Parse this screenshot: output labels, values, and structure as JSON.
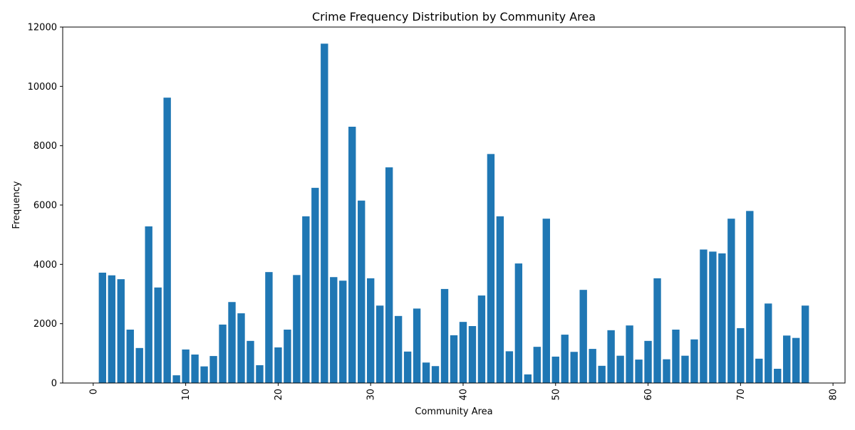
{
  "chart_data": {
    "type": "bar",
    "title": "Crime Frequency Distribution by Community Area",
    "xlabel": "Community Area",
    "ylabel": "Frequency",
    "x": [
      1,
      2,
      3,
      4,
      5,
      6,
      7,
      8,
      9,
      10,
      11,
      12,
      13,
      14,
      15,
      16,
      17,
      18,
      19,
      20,
      21,
      22,
      23,
      24,
      25,
      26,
      27,
      28,
      29,
      30,
      31,
      32,
      33,
      34,
      35,
      36,
      37,
      38,
      39,
      40,
      41,
      42,
      43,
      44,
      45,
      46,
      47,
      48,
      49,
      50,
      51,
      52,
      53,
      54,
      55,
      56,
      57,
      58,
      59,
      60,
      61,
      62,
      63,
      64,
      65,
      66,
      67,
      68,
      69,
      70,
      71,
      72,
      73,
      74,
      75,
      76,
      77
    ],
    "values": [
      3720,
      3630,
      3500,
      1800,
      1180,
      5280,
      3220,
      9620,
      260,
      1130,
      960,
      560,
      910,
      1970,
      2730,
      2350,
      1420,
      600,
      3740,
      1200,
      1800,
      3640,
      5620,
      6580,
      11440,
      3570,
      3450,
      8640,
      6150,
      3530,
      2610,
      7270,
      2260,
      1060,
      2510,
      690,
      570,
      3170,
      1610,
      2060,
      1920,
      2950,
      7720,
      5620,
      1070,
      4030,
      290,
      1220,
      5540,
      890,
      1630,
      1050,
      3140,
      1150,
      580,
      1780,
      920,
      1940,
      790,
      1420,
      3530,
      800,
      1800,
      920,
      1470,
      4500,
      4430,
      4370,
      5540,
      1850,
      5800,
      820,
      2680,
      480,
      1600,
      1520,
      2610
    ],
    "xlim": [
      -3.3,
      81.3
    ],
    "ylim": [
      0,
      12000
    ],
    "xticks": [
      0,
      10,
      20,
      30,
      40,
      50,
      60,
      70,
      80
    ],
    "xtick_labels": [
      "0",
      "10",
      "20",
      "30",
      "40",
      "50",
      "60",
      "70",
      "80"
    ],
    "yticks": [
      0,
      2000,
      4000,
      6000,
      8000,
      10000,
      12000
    ],
    "ytick_labels": [
      "0",
      "2000",
      "4000",
      "6000",
      "8000",
      "10000",
      "12000"
    ],
    "bar_color": "#1f77b4",
    "grid": false
  }
}
